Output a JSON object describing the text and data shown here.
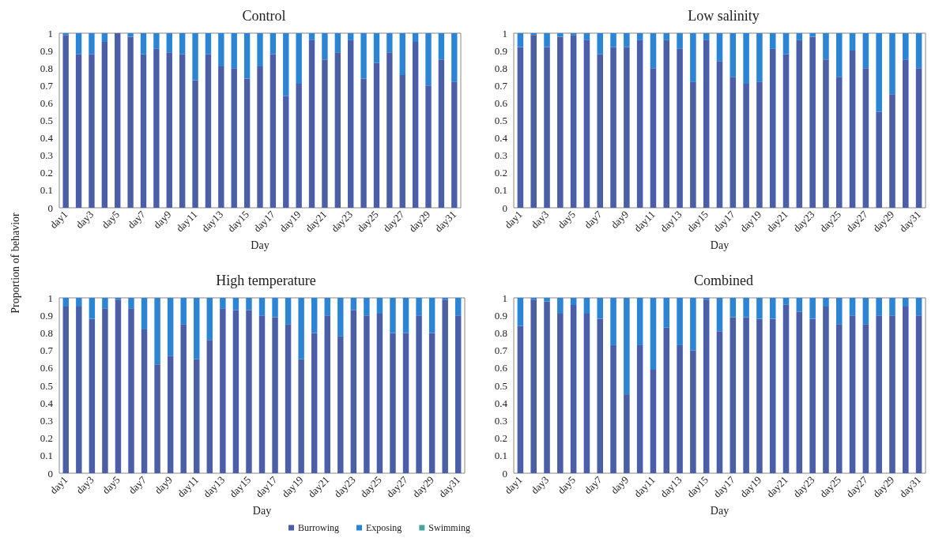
{
  "chart_data": [
    {
      "type": "bar",
      "title": "Control",
      "xlabel": "Day",
      "ylabel": "Proportion of behavior",
      "stacked": true,
      "ylim": [
        0,
        1
      ],
      "yticks": [
        0,
        0.1,
        0.2,
        0.3,
        0.4,
        0.5,
        0.6,
        0.7,
        0.8,
        0.9,
        1
      ],
      "categories": [
        "day1",
        null,
        "day3",
        null,
        "day5",
        null,
        "day7",
        null,
        "day9",
        null,
        "day11",
        null,
        "day13",
        null,
        "day15",
        null,
        "day17",
        null,
        "day19",
        null,
        "day21",
        null,
        "day23",
        null,
        "day25",
        null,
        "day27",
        null,
        "day29",
        null,
        "day31"
      ],
      "series": [
        {
          "color": "#4a5fa8",
          "values": [
            0.99,
            0.88,
            0.88,
            0.95,
            1,
            0.98,
            0.88,
            0.91,
            0.89,
            0.88,
            0.73,
            0.88,
            0.81,
            0.8,
            0.74,
            0.81,
            0.88,
            0.64,
            0.71,
            0.96,
            0.85,
            0.89,
            0.96,
            0.74,
            0.83,
            0.89,
            0.76,
            0.95,
            0.7,
            0.85,
            0.72
          ]
        },
        {
          "color": "#2b85d4",
          "values": [
            0.01,
            0.12,
            0.12,
            0.05,
            0,
            0.02,
            0.12,
            0.09,
            0.11,
            0.12,
            0.27,
            0.12,
            0.19,
            0.2,
            0.26,
            0.19,
            0.12,
            0.36,
            0.29,
            0.04,
            0.15,
            0.11,
            0.04,
            0.26,
            0.17,
            0.11,
            0.24,
            0.05,
            0.3,
            0.15,
            0.28
          ]
        },
        {
          "color": "#4aa3a0",
          "values": [
            0,
            0,
            0,
            0,
            0,
            0,
            0,
            0,
            0,
            0,
            0,
            0,
            0,
            0,
            0,
            0,
            0,
            0,
            0,
            0,
            0,
            0,
            0,
            0,
            0,
            0,
            0,
            0,
            0,
            0,
            0
          ]
        }
      ]
    },
    {
      "type": "bar",
      "title": "Low salinity",
      "xlabel": "Day",
      "stacked": true,
      "ylim": [
        0,
        1
      ],
      "yticks": [
        0,
        0.1,
        0.2,
        0.3,
        0.4,
        0.5,
        0.6,
        0.7,
        0.8,
        0.9,
        1
      ],
      "categories": [
        "day1",
        null,
        "day3",
        null,
        "day5",
        null,
        "day7",
        null,
        "day9",
        null,
        "day11",
        null,
        "day13",
        null,
        "day15",
        null,
        "day17",
        null,
        "day19",
        null,
        "day21",
        null,
        "day23",
        null,
        "day25",
        null,
        "day27",
        null,
        "day29",
        null,
        "day31"
      ],
      "series": [
        {
          "color": "#4a5fa8",
          "values": [
            0.92,
            0.99,
            0.92,
            0.98,
            0.99,
            0.96,
            0.88,
            0.92,
            0.92,
            0.96,
            0.8,
            0.96,
            0.91,
            0.72,
            0.96,
            0.84,
            0.75,
            0.71,
            0.72,
            0.91,
            0.88,
            0.96,
            0.98,
            0.85,
            0.75,
            0.9,
            0.8,
            0.55,
            0.65,
            0.85,
            0.8
          ]
        },
        {
          "color": "#2b85d4",
          "values": [
            0.08,
            0.01,
            0.08,
            0.02,
            0.01,
            0.04,
            0.12,
            0.08,
            0.08,
            0.04,
            0.2,
            0.04,
            0.09,
            0.28,
            0.04,
            0.16,
            0.25,
            0.29,
            0.28,
            0.09,
            0.12,
            0.04,
            0.02,
            0.15,
            0.25,
            0.1,
            0.2,
            0.45,
            0.35,
            0.15,
            0.2
          ]
        },
        {
          "color": "#4aa3a0",
          "values": [
            0,
            0,
            0,
            0,
            0,
            0,
            0,
            0,
            0,
            0,
            0,
            0,
            0,
            0,
            0,
            0,
            0,
            0,
            0,
            0,
            0,
            0,
            0,
            0,
            0,
            0,
            0,
            0,
            0,
            0,
            0
          ]
        }
      ]
    },
    {
      "type": "bar",
      "title": "High temperature",
      "xlabel": "Day",
      "stacked": true,
      "legend": "bottom",
      "ylim": [
        0,
        1
      ],
      "yticks": [
        0,
        0.1,
        0.2,
        0.3,
        0.4,
        0.5,
        0.6,
        0.7,
        0.8,
        0.9,
        1
      ],
      "categories": [
        "day1",
        null,
        "day3",
        null,
        "day5",
        null,
        "day7",
        null,
        "day9",
        null,
        "day11",
        null,
        "day13",
        null,
        "day15",
        null,
        "day17",
        null,
        "day19",
        null,
        "day21",
        null,
        "day23",
        null,
        "day25",
        null,
        "day27",
        null,
        "day29",
        null,
        "day31"
      ],
      "series": [
        {
          "name": "Burrowing",
          "color": "#4a5fa8",
          "values": [
            0.95,
            0.95,
            0.88,
            0.94,
            0.99,
            0.94,
            0.82,
            0.62,
            0.67,
            0.85,
            0.65,
            0.76,
            0.94,
            0.93,
            0.93,
            0.9,
            0.89,
            0.85,
            0.65,
            0.8,
            0.9,
            0.78,
            0.93,
            0.9,
            0.91,
            0.8,
            0.8,
            0.9,
            0.8,
            0.99,
            0.9
          ]
        },
        {
          "name": "Exposing",
          "color": "#2b85d4",
          "values": [
            0.05,
            0.05,
            0.12,
            0.06,
            0.01,
            0.06,
            0.18,
            0.38,
            0.33,
            0.15,
            0.35,
            0.24,
            0.06,
            0.07,
            0.07,
            0.1,
            0.11,
            0.15,
            0.35,
            0.2,
            0.1,
            0.22,
            0.07,
            0.1,
            0.09,
            0.2,
            0.2,
            0.1,
            0.2,
            0.01,
            0.1
          ]
        },
        {
          "name": "Swimming",
          "color": "#4aa3a0",
          "values": [
            0,
            0,
            0,
            0,
            0,
            0,
            0,
            0,
            0,
            0,
            0,
            0,
            0,
            0,
            0,
            0,
            0,
            0,
            0,
            0,
            0,
            0,
            0,
            0,
            0,
            0,
            0,
            0,
            0,
            0,
            0
          ]
        }
      ]
    },
    {
      "type": "bar",
      "title": "Combined",
      "xlabel": "Day",
      "stacked": true,
      "ylim": [
        0,
        1
      ],
      "yticks": [
        0,
        0.1,
        0.2,
        0.3,
        0.4,
        0.5,
        0.6,
        0.7,
        0.8,
        0.9,
        1
      ],
      "categories": [
        "day1",
        null,
        "day3",
        null,
        "day5",
        null,
        "day7",
        null,
        "day9",
        null,
        "day11",
        null,
        "day13",
        null,
        "day15",
        null,
        "day17",
        null,
        "day19",
        null,
        "day21",
        null,
        "day23",
        null,
        "day25",
        null,
        "day27",
        null,
        "day29",
        null,
        "day31"
      ],
      "series": [
        {
          "color": "#4a5fa8",
          "values": [
            0.84,
            0.99,
            0.98,
            0.91,
            0.96,
            0.91,
            0.88,
            0.73,
            0.45,
            0.73,
            0.59,
            0.83,
            0.73,
            0.7,
            0.99,
            0.81,
            0.89,
            0.89,
            0.88,
            0.88,
            0.96,
            0.92,
            0.88,
            0.95,
            0.85,
            0.9,
            0.85,
            0.9,
            0.9,
            0.95,
            0.9
          ]
        },
        {
          "color": "#2b85d4",
          "values": [
            0.16,
            0.01,
            0.02,
            0.09,
            0.04,
            0.09,
            0.12,
            0.27,
            0.55,
            0.27,
            0.41,
            0.17,
            0.27,
            0.3,
            0.01,
            0.19,
            0.11,
            0.11,
            0.12,
            0.12,
            0.04,
            0.08,
            0.12,
            0.05,
            0.15,
            0.1,
            0.15,
            0.1,
            0.1,
            0.05,
            0.1
          ]
        },
        {
          "color": "#4aa3a0",
          "values": [
            0,
            0,
            0,
            0,
            0,
            0,
            0,
            0,
            0,
            0,
            0,
            0,
            0,
            0,
            0,
            0,
            0,
            0,
            0,
            0,
            0,
            0,
            0,
            0,
            0,
            0,
            0,
            0,
            0,
            0,
            0
          ]
        }
      ]
    }
  ]
}
